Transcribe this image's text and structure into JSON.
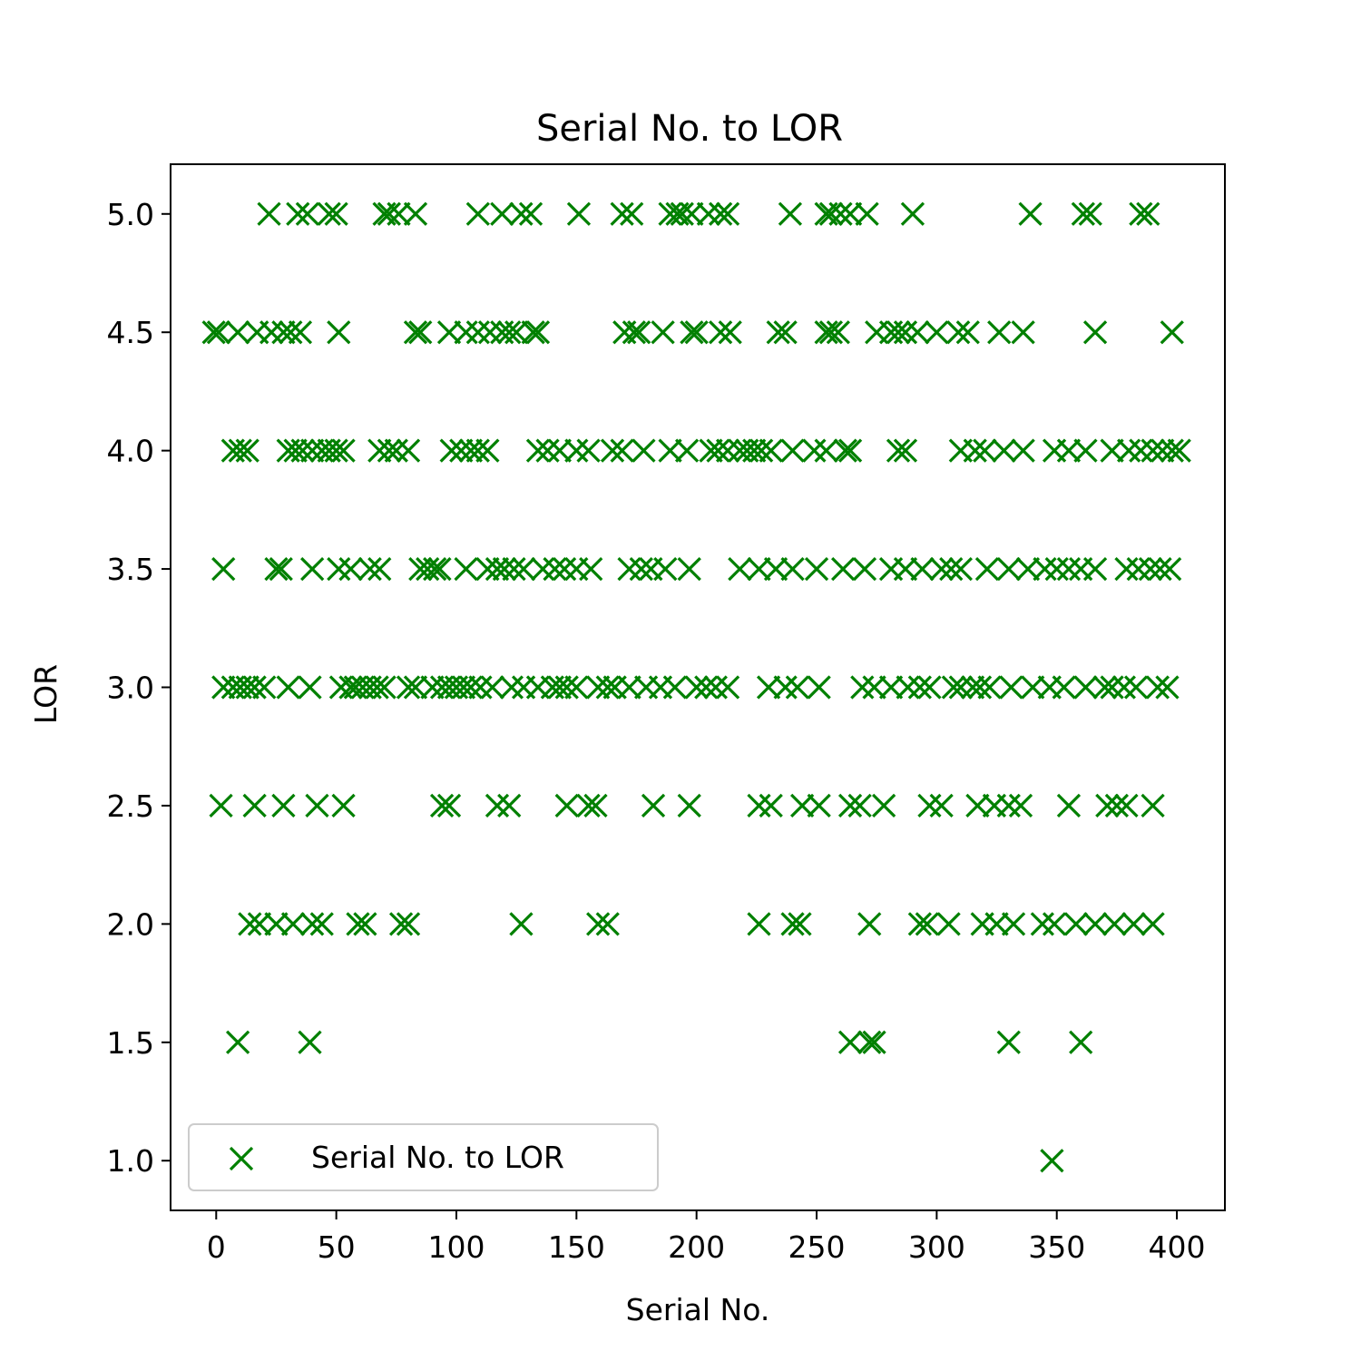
{
  "chart_data": {
    "type": "scatter",
    "title": "Serial No. to LOR",
    "xlabel": "Serial No.",
    "ylabel": "LOR",
    "xlim": [
      -19,
      420
    ],
    "ylim": [
      0.79,
      5.21
    ],
    "xticks": [
      0,
      50,
      100,
      150,
      200,
      250,
      300,
      350,
      400
    ],
    "yticks": [
      1.0,
      1.5,
      2.0,
      2.5,
      3.0,
      3.5,
      4.0,
      4.5,
      5.0
    ],
    "grid": false,
    "legend_position": "lower-left",
    "marker": "x",
    "color": "#008000",
    "series": [
      {
        "name": "Serial No. to LOR",
        "points": [
          {
            "lor": 5.0,
            "x": [
              22,
              34,
              38,
              47,
              50,
              70,
              72,
              76,
              83,
              109,
              119,
              127,
              131,
              151,
              169,
              173,
              189,
              192,
              194,
              198,
              205,
              210,
              213,
              239,
              254,
              256,
              260,
              264,
              271,
              290,
              339,
              361,
              364,
              385,
              388
            ]
          },
          {
            "lor": 4.5,
            "x": [
              -1,
              1,
              9,
              17,
              23,
              28,
              31,
              35,
              51,
              83,
              85,
              97,
              104,
              109,
              114,
              119,
              122,
              125,
              132,
              134,
              170,
              174,
              176,
              186,
              198,
              200,
              210,
              214,
              234,
              237,
              254,
              256,
              259,
              275,
              281,
              284,
              287,
              292,
              300,
              309,
              313,
              326,
              336,
              366,
              398
            ]
          },
          {
            "lor": 4.0,
            "x": [
              7,
              10,
              13,
              30,
              33,
              36,
              40,
              44,
              47,
              50,
              53,
              68,
              72,
              75,
              80,
              98,
              102,
              106,
              109,
              113,
              134,
              138,
              143,
              150,
              155,
              165,
              169,
              178,
              189,
              196,
              206,
              209,
              213,
              218,
              221,
              224,
              227,
              231,
              240,
              249,
              254,
              262,
              264,
              284,
              287,
              310,
              316,
              320,
              328,
              336,
              349,
              355,
              362,
              373,
              380,
              385,
              390,
              394,
              398,
              401
            ]
          },
          {
            "lor": 3.5,
            "x": [
              3,
              25,
              27,
              40,
              51,
              56,
              64,
              68,
              85,
              88,
              91,
              93,
              104,
              113,
              117,
              120,
              124,
              128,
              136,
              141,
              145,
              150,
              156,
              172,
              177,
              181,
              187,
              197,
              218,
              226,
              233,
              240,
              250,
              261,
              270,
              281,
              287,
              294,
              302,
              306,
              310,
              321,
              330,
              338,
              345,
              350,
              355,
              360,
              366,
              379,
              384,
              389,
              393,
              397
            ]
          },
          {
            "lor": 3.0,
            "x": [
              3,
              7,
              10,
              13,
              16,
              20,
              30,
              39,
              52,
              56,
              58,
              61,
              64,
              67,
              70,
              80,
              83,
              90,
              94,
              97,
              100,
              103,
              106,
              110,
              115,
              123,
              128,
              134,
              140,
              143,
              146,
              150,
              159,
              163,
              166,
              172,
              179,
              185,
              191,
              200,
              204,
              208,
              213,
              230,
              237,
              242,
              251,
              269,
              274,
              281,
              288,
              293,
              297,
              307,
              310,
              315,
              318,
              322,
              331,
              340,
              347,
              353,
              362,
              370,
              373,
              378,
              383,
              392,
              396
            ]
          },
          {
            "lor": 2.5,
            "x": [
              2,
              16,
              28,
              42,
              53,
              94,
              97,
              117,
              122,
              146,
              155,
              158,
              182,
              197,
              226,
              231,
              244,
              251,
              264,
              268,
              278,
              297,
              302,
              317,
              324,
              330,
              335,
              355,
              371,
              375,
              379,
              390
            ]
          },
          {
            "lor": 2.0,
            "x": [
              14,
              18,
              25,
              32,
              40,
              44,
              59,
              62,
              77,
              80,
              127,
              159,
              163,
              226,
              240,
              243,
              272,
              293,
              296,
              305,
              319,
              325,
              332,
              344,
              349,
              358,
              366,
              374,
              382,
              390
            ]
          },
          {
            "lor": 1.5,
            "x": [
              9,
              39,
              264,
              272,
              274,
              330,
              360
            ]
          },
          {
            "lor": 1.0,
            "x": [
              348
            ]
          }
        ]
      }
    ]
  }
}
